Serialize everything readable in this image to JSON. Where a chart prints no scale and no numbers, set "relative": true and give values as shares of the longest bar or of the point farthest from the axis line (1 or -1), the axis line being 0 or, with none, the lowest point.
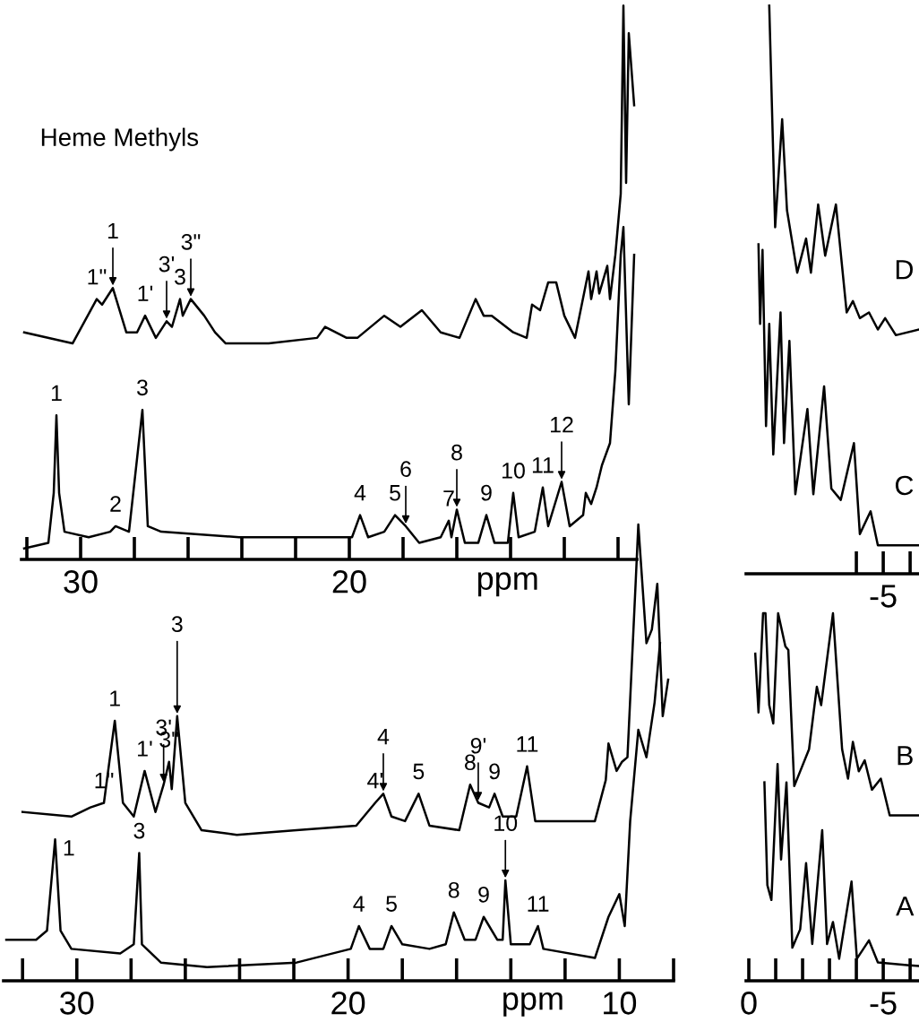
{
  "chart_data": [
    {
      "type": "line",
      "relative": true,
      "tick_labels": "x",
      "xlabel": "ppm",
      "xlim": [
        32.2,
        9.3
      ],
      "xticks": [
        {
          "value": 32,
          "label": null
        },
        30,
        {
          "value": 28,
          "label": null
        },
        {
          "value": 26,
          "label": null
        },
        {
          "value": 24,
          "label": null
        },
        {
          "value": 22,
          "label": null
        },
        20,
        {
          "value": 18,
          "label": null
        },
        {
          "value": 16,
          "label": null
        },
        {
          "value": 14,
          "label": null
        },
        {
          "value": 12,
          "label": null
        },
        {
          "value": 10,
          "label": null
        }
      ],
      "series": [
        {
          "color": "#000000",
          "x": [
            32.1,
            30.3,
            29.4,
            29.2,
            28.8,
            28.3,
            27.9,
            27.6,
            27.2,
            26.8,
            26.6,
            26.3,
            26.2,
            25.9,
            25.4,
            25.0,
            24.6,
            23.0,
            21.2,
            20.9,
            20.1,
            19.7,
            18.7,
            18.1,
            17.3,
            16.6,
            15.9,
            15.3,
            15.0,
            14.7,
            13.9,
            13.4,
            13.2,
            12.9,
            12.6,
            12.3,
            12.0,
            11.6,
            11.1,
            11.0,
            10.8,
            10.7,
            10.4,
            10.3,
            10.1,
            9.9,
            9.8,
            9.7,
            9.6,
            9.4
          ],
          "values": [
            0.41,
            0.39,
            0.47,
            0.46,
            0.49,
            0.41,
            0.41,
            0.44,
            0.4,
            0.43,
            0.42,
            0.47,
            0.44,
            0.47,
            0.44,
            0.41,
            0.39,
            0.39,
            0.4,
            0.42,
            0.4,
            0.4,
            0.44,
            0.42,
            0.45,
            0.41,
            0.4,
            0.47,
            0.44,
            0.44,
            0.41,
            0.4,
            0.46,
            0.45,
            0.5,
            0.5,
            0.44,
            0.4,
            0.52,
            0.47,
            0.52,
            0.48,
            0.53,
            0.47,
            0.55,
            0.66,
            1.0,
            0.68,
            0.95,
            0.82
          ]
        },
        {
          "color": "#000000",
          "x": [
            32.1,
            31.2,
            31.0,
            30.9,
            30.8,
            30.6,
            29.7,
            28.9,
            28.7,
            28.2,
            27.7,
            27.5,
            27.0,
            24.1,
            20.6,
            19.9,
            19.6,
            19.3,
            18.7,
            18.3,
            17.9,
            17.4,
            16.6,
            16.3,
            16.2,
            16.0,
            15.7,
            15.2,
            14.9,
            14.6,
            14.1,
            13.9,
            13.7,
            13.1,
            12.8,
            12.6,
            12.1,
            11.8,
            11.3,
            11.2,
            11.0,
            10.8,
            10.6,
            10.3,
            10.1,
            9.9,
            9.8,
            9.6,
            9.4
          ],
          "values": [
            0.02,
            0.03,
            0.12,
            0.26,
            0.12,
            0.05,
            0.04,
            0.05,
            0.06,
            0.05,
            0.27,
            0.06,
            0.05,
            0.04,
            0.04,
            0.04,
            0.08,
            0.04,
            0.05,
            0.08,
            0.06,
            0.03,
            0.04,
            0.07,
            0.04,
            0.09,
            0.03,
            0.03,
            0.08,
            0.03,
            0.03,
            0.12,
            0.04,
            0.05,
            0.13,
            0.06,
            0.14,
            0.06,
            0.08,
            0.12,
            0.1,
            0.13,
            0.17,
            0.21,
            0.34,
            0.55,
            0.6,
            0.28,
            0.55
          ]
        }
      ],
      "annotations": [
        "Heme Methyls",
        {
          "text": "1\"",
          "x": 29.4,
          "y": 0.47
        },
        {
          "text": "1",
          "x": 28.8,
          "y": 0.49
        },
        {
          "text": "1'",
          "x": 27.6,
          "y": 0.44
        },
        {
          "text": "3'",
          "x": 26.8,
          "y": 0.43
        },
        {
          "text": "3",
          "x": 26.3,
          "y": 0.47
        },
        {
          "text": "3\"",
          "x": 25.9,
          "y": 0.47
        },
        {
          "text": "1",
          "x": 30.9,
          "y": 0.26
        },
        {
          "text": "2",
          "x": 28.7,
          "y": 0.06
        },
        {
          "text": "3",
          "x": 27.7,
          "y": 0.27
        },
        {
          "text": "4",
          "x": 19.6,
          "y": 0.08
        },
        {
          "text": "5",
          "x": 18.3,
          "y": 0.08
        },
        {
          "text": "6",
          "x": 17.9,
          "y": 0.06
        },
        {
          "text": "7",
          "x": 16.3,
          "y": 0.07
        },
        {
          "text": "8",
          "x": 16.0,
          "y": 0.09
        },
        {
          "text": "9",
          "x": 14.9,
          "y": 0.08
        },
        {
          "text": "10",
          "x": 13.9,
          "y": 0.12
        },
        {
          "text": "11",
          "x": 12.8,
          "y": 0.13
        },
        {
          "text": "12",
          "x": 12.1,
          "y": 0.14
        }
      ]
    },
    {
      "type": "line",
      "relative": true,
      "tick_labels": false,
      "xlim": [
        0.1,
        -6.33
      ],
      "xticks": [
        {
          "value": -4,
          "label": null
        },
        {
          "value": -5,
          "label": null
        },
        {
          "value": -6,
          "label": null
        }
      ],
      "annotations": [
        "-5"
      ],
      "series": [
        {
          "name": "D",
          "color": "#000000",
          "x": [
            -0.76,
            -0.98,
            -1.24,
            -1.42,
            -1.8,
            -2.13,
            -2.31,
            -2.58,
            -2.84,
            -3.24,
            -3.64,
            -3.87,
            -4.13,
            -4.47,
            -4.8,
            -5.07,
            -5.47,
            -6.33
          ],
          "values": [
            1.0,
            0.61,
            0.8,
            0.64,
            0.53,
            0.59,
            0.53,
            0.65,
            0.56,
            0.65,
            0.46,
            0.48,
            0.45,
            0.46,
            0.43,
            0.45,
            0.42,
            0.43
          ]
        },
        {
          "name": "C",
          "color": "#000000",
          "x": [
            -0.36,
            -0.42,
            -0.51,
            -0.64,
            -0.76,
            -0.91,
            -1.18,
            -1.31,
            -1.51,
            -1.73,
            -2.18,
            -2.4,
            -2.8,
            -3.07,
            -3.42,
            -3.91,
            -4.13,
            -4.53,
            -4.8,
            -6.33
          ],
          "values": [
            0.58,
            0.44,
            0.57,
            0.26,
            0.44,
            0.21,
            0.46,
            0.23,
            0.41,
            0.14,
            0.29,
            0.14,
            0.33,
            0.15,
            0.13,
            0.23,
            0.07,
            0.11,
            0.05,
            0.05
          ]
        }
      ]
    },
    {
      "type": "line",
      "relative": true,
      "tick_labels": "x",
      "xlabel": "ppm",
      "xlim": [
        32.7,
        8.0
      ],
      "xticks": [
        {
          "value": 32,
          "label": null
        },
        30,
        {
          "value": 28,
          "label": null
        },
        {
          "value": 26,
          "label": null
        },
        {
          "value": 24,
          "label": null
        },
        {
          "value": 22,
          "label": null
        },
        20,
        {
          "value": 18,
          "label": null
        },
        {
          "value": 16,
          "label": null
        },
        {
          "value": 14,
          "label": null
        },
        {
          "value": 12,
          "label": null
        },
        10,
        {
          "value": 8,
          "label": null
        }
      ],
      "series": [
        {
          "color": "#000000",
          "x": [
            32.0,
            30.2,
            29.5,
            29.0,
            28.6,
            28.3,
            27.9,
            27.5,
            27.1,
            26.8,
            26.6,
            26.5,
            26.3,
            26.0,
            25.4,
            24.1,
            21.9,
            19.7,
            19.0,
            18.7,
            18.4,
            17.9,
            17.4,
            17.0,
            15.9,
            15.5,
            15.2,
            14.8,
            14.6,
            14.3,
            13.8,
            13.4,
            13.1,
            12.0,
            10.9,
            10.5,
            10.4,
            10.1,
            9.9,
            9.7,
            9.4,
            9.3,
            9.0,
            8.8,
            8.6,
            8.4,
            8.2
          ],
          "values": [
            0.37,
            0.36,
            0.38,
            0.39,
            0.57,
            0.39,
            0.36,
            0.46,
            0.37,
            0.43,
            0.48,
            0.42,
            0.58,
            0.39,
            0.33,
            0.32,
            0.33,
            0.34,
            0.39,
            0.41,
            0.36,
            0.35,
            0.41,
            0.34,
            0.33,
            0.43,
            0.39,
            0.38,
            0.41,
            0.36,
            0.36,
            0.47,
            0.35,
            0.35,
            0.35,
            0.44,
            0.52,
            0.46,
            0.48,
            0.49,
            0.87,
            1.0,
            0.74,
            0.77,
            0.87,
            0.58,
            0.66
          ]
        },
        {
          "color": "#000000",
          "x": [
            32.6,
            31.5,
            31.1,
            30.8,
            30.6,
            30.2,
            28.4,
            27.9,
            27.7,
            27.6,
            26.9,
            25.2,
            21.9,
            19.9,
            19.6,
            19.2,
            18.7,
            18.4,
            18.0,
            17.0,
            16.4,
            16.1,
            15.7,
            15.3,
            15.0,
            14.5,
            14.3,
            14.2,
            14.0,
            13.3,
            13.0,
            12.8,
            10.9,
            10.4,
            10.0,
            9.8,
            9.6,
            9.3,
            9.0,
            8.7,
            8.5
          ],
          "values": [
            0.09,
            0.09,
            0.11,
            0.31,
            0.11,
            0.07,
            0.06,
            0.08,
            0.28,
            0.08,
            0.04,
            0.03,
            0.04,
            0.07,
            0.12,
            0.07,
            0.07,
            0.12,
            0.08,
            0.07,
            0.08,
            0.15,
            0.09,
            0.09,
            0.14,
            0.09,
            0.09,
            0.22,
            0.08,
            0.08,
            0.12,
            0.07,
            0.05,
            0.14,
            0.19,
            0.12,
            0.35,
            0.55,
            0.49,
            0.61,
            0.74
          ]
        }
      ],
      "annotations": [
        {
          "text": "1\"",
          "x": 29.0,
          "y": 0.39
        },
        {
          "text": "1",
          "x": 28.6,
          "y": 0.57
        },
        {
          "text": "1'",
          "x": 27.5,
          "y": 0.46
        },
        {
          "text": "3'",
          "x": 26.8,
          "y": 0.43
        },
        {
          "text": "3\"",
          "x": 26.6,
          "y": 0.48
        },
        {
          "text": "3",
          "x": 26.3,
          "y": 0.58
        },
        {
          "text": "4'",
          "x": 19.0,
          "y": 0.39
        },
        {
          "text": "4",
          "x": 18.7,
          "y": 0.41
        },
        {
          "text": "5",
          "x": 17.4,
          "y": 0.41
        },
        {
          "text": "8",
          "x": 15.5,
          "y": 0.43
        },
        {
          "text": "9'",
          "x": 15.2,
          "y": 0.39
        },
        {
          "text": "9",
          "x": 14.6,
          "y": 0.41
        },
        {
          "text": "11",
          "x": 13.4,
          "y": 0.47
        },
        {
          "text": "1",
          "x": 30.8,
          "y": 0.31
        },
        {
          "text": "3",
          "x": 27.7,
          "y": 0.28
        },
        {
          "text": "4",
          "x": 19.6,
          "y": 0.12
        },
        {
          "text": "5",
          "x": 18.4,
          "y": 0.12
        },
        {
          "text": "8",
          "x": 16.1,
          "y": 0.15
        },
        {
          "text": "9",
          "x": 15.0,
          "y": 0.14
        },
        {
          "text": "10",
          "x": 14.2,
          "y": 0.22
        },
        {
          "text": "11",
          "x": 13.0,
          "y": 0.12
        }
      ]
    },
    {
      "type": "line",
      "relative": true,
      "tick_labels": "x",
      "xlim": [
        0.1,
        -6.33
      ],
      "xticks": [
        0,
        {
          "value": -1,
          "label": null
        },
        {
          "value": -2,
          "label": null
        },
        {
          "value": -3,
          "label": null
        },
        {
          "value": -4,
          "label": null
        },
        -5,
        {
          "value": -6,
          "label": null
        }
      ],
      "series": [
        {
          "name": "B",
          "color": "#000000",
          "x": [
            -0.24,
            -0.36,
            -0.53,
            -0.62,
            -0.76,
            -0.91,
            -1.09,
            -1.36,
            -1.47,
            -1.69,
            -1.91,
            -2.24,
            -2.53,
            -2.69,
            -3.13,
            -3.47,
            -3.69,
            -3.87,
            -4.09,
            -4.31,
            -4.58,
            -4.91,
            -5.24,
            -6.33
          ],
          "values": [
            0.89,
            0.73,
            1.0,
            1.0,
            0.75,
            0.7,
            1.0,
            0.91,
            0.9,
            0.53,
            0.57,
            0.63,
            0.8,
            0.75,
            1.0,
            0.63,
            0.55,
            0.65,
            0.57,
            0.6,
            0.52,
            0.55,
            0.45,
            0.45
          ]
        },
        {
          "name": "A",
          "color": "#000000",
          "x": [
            -0.58,
            -0.69,
            -0.84,
            -1.07,
            -1.2,
            -1.4,
            -1.62,
            -1.91,
            -2.13,
            -2.36,
            -2.73,
            -2.91,
            -3.13,
            -3.36,
            -3.82,
            -4.02,
            -4.47,
            -4.8,
            -6.33
          ],
          "values": [
            0.54,
            0.26,
            0.22,
            0.59,
            0.33,
            0.54,
            0.09,
            0.14,
            0.32,
            0.1,
            0.41,
            0.1,
            0.16,
            0.06,
            0.27,
            0.06,
            0.11,
            0.05,
            0.04
          ]
        }
      ]
    }
  ]
}
